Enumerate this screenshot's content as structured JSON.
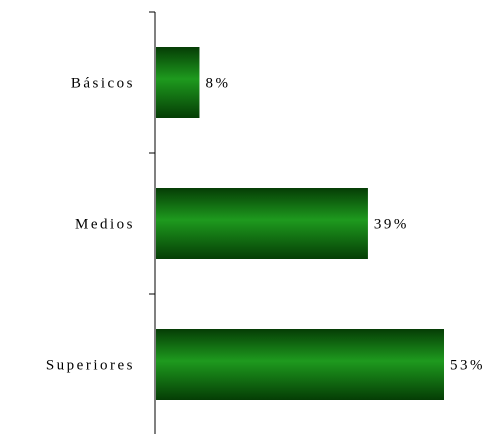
{
  "chart_data": {
    "type": "bar",
    "orientation": "horizontal",
    "categories": [
      "Básicos",
      "Medios",
      "Superiores"
    ],
    "values": [
      8,
      39,
      53
    ],
    "value_labels": [
      "8%",
      "39%",
      "53%"
    ],
    "xlim": [
      0,
      53
    ],
    "title": "",
    "xlabel": "",
    "ylabel": "",
    "grid": false,
    "legend": "none",
    "bar_color": "#0d6b0d",
    "bar_color_light": "#1e9a1e",
    "bar_color_dark": "#053d05"
  }
}
